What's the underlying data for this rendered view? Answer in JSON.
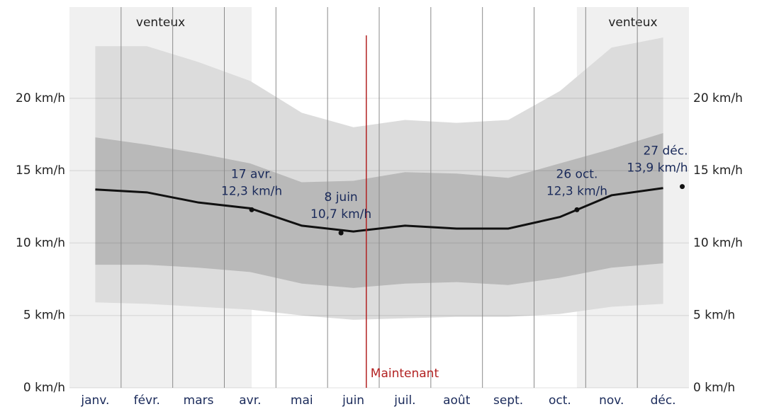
{
  "chart_data": {
    "type": "band-line",
    "categories": [
      "janv.",
      "févr.",
      "mars",
      "avr.",
      "mai",
      "juin",
      "juil.",
      "août",
      "sept.",
      "oct.",
      "nov.",
      "déc."
    ],
    "ylim": [
      0,
      26.3
    ],
    "yticks": [
      {
        "value": 0,
        "label": "0 km/h"
      },
      {
        "value": 5,
        "label": "5 km/h"
      },
      {
        "value": 10,
        "label": "10 km/h"
      },
      {
        "value": 15,
        "label": "15 km/h"
      },
      {
        "value": 20,
        "label": "20 km/h"
      }
    ],
    "grid": true,
    "bands": [
      {
        "color": "#dcdcdc",
        "upper": [
          23.6,
          23.6,
          22.5,
          21.2,
          19.0,
          18.0,
          18.5,
          18.3,
          18.5,
          20.5,
          23.5,
          24.2
        ],
        "lower": [
          5.9,
          5.8,
          5.6,
          5.4,
          5.0,
          4.7,
          4.8,
          4.9,
          4.9,
          5.1,
          5.6,
          5.8
        ]
      },
      {
        "color": "#b9b9b9",
        "upper": [
          17.3,
          16.8,
          16.2,
          15.5,
          14.2,
          14.3,
          14.9,
          14.8,
          14.5,
          15.5,
          16.5,
          17.6
        ],
        "lower": [
          8.5,
          8.5,
          8.3,
          8.0,
          7.2,
          6.9,
          7.2,
          7.3,
          7.1,
          7.6,
          8.3,
          8.6
        ]
      }
    ],
    "mean": {
      "color": "#111111",
      "values": [
        13.7,
        13.5,
        12.8,
        12.4,
        11.2,
        10.8,
        11.2,
        11.0,
        11.0,
        11.8,
        13.3,
        13.8
      ]
    },
    "regions": [
      {
        "label": "venteux",
        "start": 0,
        "end": 3.53
      },
      {
        "label": "venteux",
        "start": 9.83,
        "end": 12
      }
    ],
    "now": {
      "label": "Maintenant",
      "month": 5.75,
      "color": "#b22222"
    },
    "annotations": [
      {
        "date": "17 avr.",
        "month": 3.53,
        "value": 12.3,
        "label": "12,3 km/h"
      },
      {
        "date": "8 juin",
        "month": 5.26,
        "value": 10.7,
        "label": "10,7 km/h"
      },
      {
        "date": "26 oct.",
        "month": 9.83,
        "value": 12.3,
        "label": "12,3 km/h"
      },
      {
        "date": "27 déc.",
        "month": 11.87,
        "value": 13.9,
        "label": "13,9 km/h"
      }
    ]
  }
}
